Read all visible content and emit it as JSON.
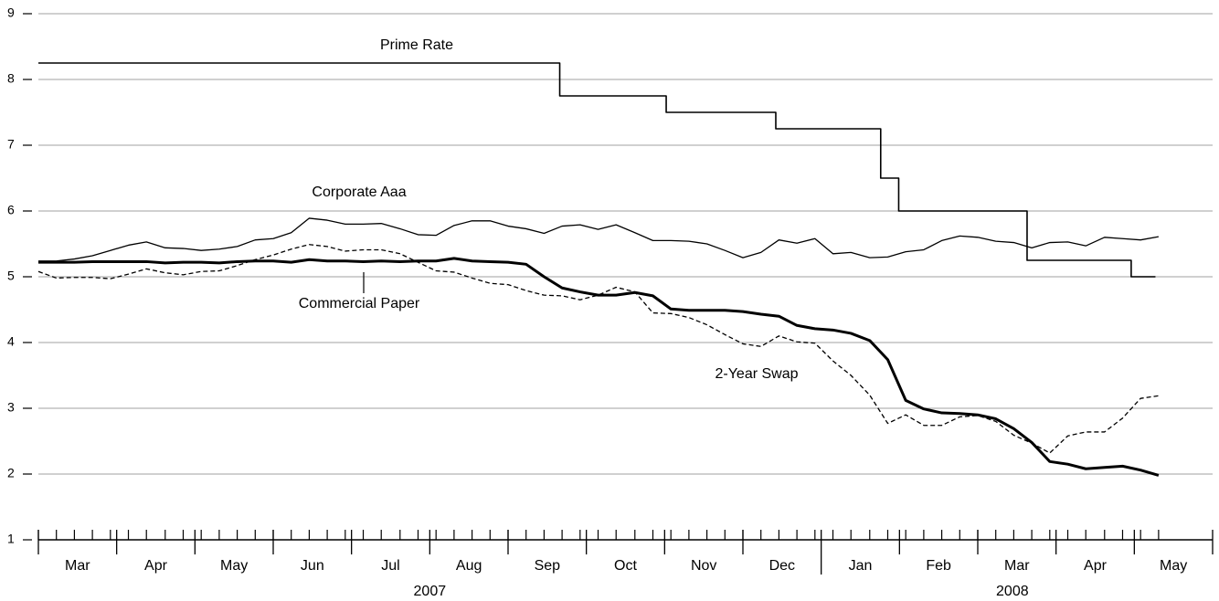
{
  "chart_data": {
    "type": "line",
    "x": [
      0,
      0.23,
      0.46,
      0.69,
      0.92,
      1.15,
      1.38,
      1.62,
      1.85,
      2.08,
      2.31,
      2.54,
      2.77,
      3.0,
      3.23,
      3.46,
      3.69,
      3.92,
      4.15,
      4.38,
      4.62,
      4.85,
      5.08,
      5.31,
      5.54,
      5.77,
      6.0,
      6.23,
      6.46,
      6.69,
      6.92,
      7.15,
      7.38,
      7.62,
      7.85,
      8.08,
      8.31,
      8.54,
      8.77,
      9.0,
      9.23,
      9.46,
      9.69,
      9.92,
      10.15,
      10.38,
      10.62,
      10.85,
      11.08,
      11.31,
      11.54,
      11.77,
      12.0,
      12.23,
      12.46,
      12.69,
      12.92,
      13.15,
      13.38,
      13.62,
      13.85,
      14.08,
      14.31
    ],
    "series": [
      {
        "name": "Prime Rate",
        "color": "#000000",
        "style": "step",
        "line_width": 1.6,
        "x": [
          0,
          6.66,
          8.02,
          9.42,
          10.76,
          10.99,
          12.63,
          13.96,
          14.27
        ],
        "values": [
          8.25,
          7.75,
          7.5,
          7.25,
          6.5,
          6.0,
          5.25,
          5.0,
          5.0
        ]
      },
      {
        "name": "Corporate Aaa",
        "color": "#000000",
        "style": "solid",
        "line_width": 1.3,
        "values": [
          5.24,
          5.24,
          5.27,
          5.32,
          5.4,
          5.48,
          5.53,
          5.44,
          5.43,
          5.4,
          5.42,
          5.46,
          5.56,
          5.58,
          5.67,
          5.89,
          5.86,
          5.8,
          5.8,
          5.81,
          5.73,
          5.64,
          5.63,
          5.78,
          5.85,
          5.85,
          5.77,
          5.73,
          5.66,
          5.77,
          5.79,
          5.72,
          5.79,
          5.67,
          5.55,
          5.55,
          5.54,
          5.5,
          5.4,
          5.29,
          5.37,
          5.56,
          5.51,
          5.58,
          5.35,
          5.37,
          5.29,
          5.3,
          5.38,
          5.41,
          5.55,
          5.62,
          5.6,
          5.54,
          5.52,
          5.44,
          5.52,
          5.53,
          5.47,
          5.6,
          5.58,
          5.56,
          5.61
        ]
      },
      {
        "name": "Commercial Paper",
        "color": "#000000",
        "style": "dashed",
        "line_width": 1.3,
        "values": [
          5.08,
          4.98,
          4.99,
          4.99,
          4.97,
          5.04,
          5.12,
          5.06,
          5.03,
          5.08,
          5.09,
          5.17,
          5.26,
          5.33,
          5.42,
          5.49,
          5.46,
          5.39,
          5.41,
          5.41,
          5.35,
          5.22,
          5.09,
          5.07,
          4.98,
          4.9,
          4.88,
          4.79,
          4.72,
          4.71,
          4.65,
          4.72,
          4.84,
          4.77,
          4.45,
          4.44,
          4.38,
          4.27,
          4.12,
          3.98,
          3.94,
          4.1,
          4.01,
          3.99,
          3.72,
          3.5,
          3.2,
          2.77,
          2.9,
          2.74,
          2.74,
          2.87,
          2.89,
          2.8,
          2.59,
          2.47,
          2.32,
          2.58,
          2.64,
          2.64,
          2.85,
          3.15,
          3.19
        ]
      },
      {
        "name": "2-Year Swap",
        "color": "#000000",
        "style": "solid",
        "line_width": 3,
        "values": [
          5.22,
          5.22,
          5.22,
          5.23,
          5.23,
          5.23,
          5.23,
          5.21,
          5.22,
          5.22,
          5.21,
          5.23,
          5.24,
          5.24,
          5.22,
          5.26,
          5.24,
          5.24,
          5.23,
          5.24,
          5.23,
          5.24,
          5.24,
          5.28,
          5.24,
          5.23,
          5.22,
          5.19,
          5.0,
          4.83,
          4.77,
          4.72,
          4.72,
          4.76,
          4.71,
          4.51,
          4.49,
          4.49,
          4.49,
          4.47,
          4.43,
          4.4,
          4.26,
          4.21,
          4.19,
          4.14,
          4.03,
          3.74,
          3.12,
          2.99,
          2.93,
          2.92,
          2.9,
          2.84,
          2.69,
          2.48,
          2.19,
          2.15,
          2.08,
          2.1,
          2.12,
          2.06,
          1.98
        ]
      }
    ],
    "xlim": [
      0,
      15
    ],
    "xticks": [
      {
        "value": 0.5,
        "label": "Mar"
      },
      {
        "value": 1.5,
        "label": "Apr"
      },
      {
        "value": 2.5,
        "label": "May"
      },
      {
        "value": 3.5,
        "label": "Jun"
      },
      {
        "value": 4.5,
        "label": "Jul"
      },
      {
        "value": 5.5,
        "label": "Aug"
      },
      {
        "value": 6.5,
        "label": "Sep"
      },
      {
        "value": 7.5,
        "label": "Oct"
      },
      {
        "value": 8.5,
        "label": "Nov"
      },
      {
        "value": 9.5,
        "label": "Dec"
      },
      {
        "value": 10.5,
        "label": "Jan"
      },
      {
        "value": 11.5,
        "label": "Feb"
      },
      {
        "value": 12.5,
        "label": "Mar"
      },
      {
        "value": 13.5,
        "label": "Apr"
      },
      {
        "value": 14.5,
        "label": "May"
      }
    ],
    "x_groups": [
      {
        "label": "2007",
        "from": 0,
        "to": 10
      },
      {
        "label": "2008",
        "from": 10,
        "to": 15
      }
    ],
    "ylim": [
      1,
      9
    ],
    "yticks": [
      1,
      2,
      3,
      4,
      5,
      6,
      7,
      8,
      9
    ],
    "grid": true
  }
}
